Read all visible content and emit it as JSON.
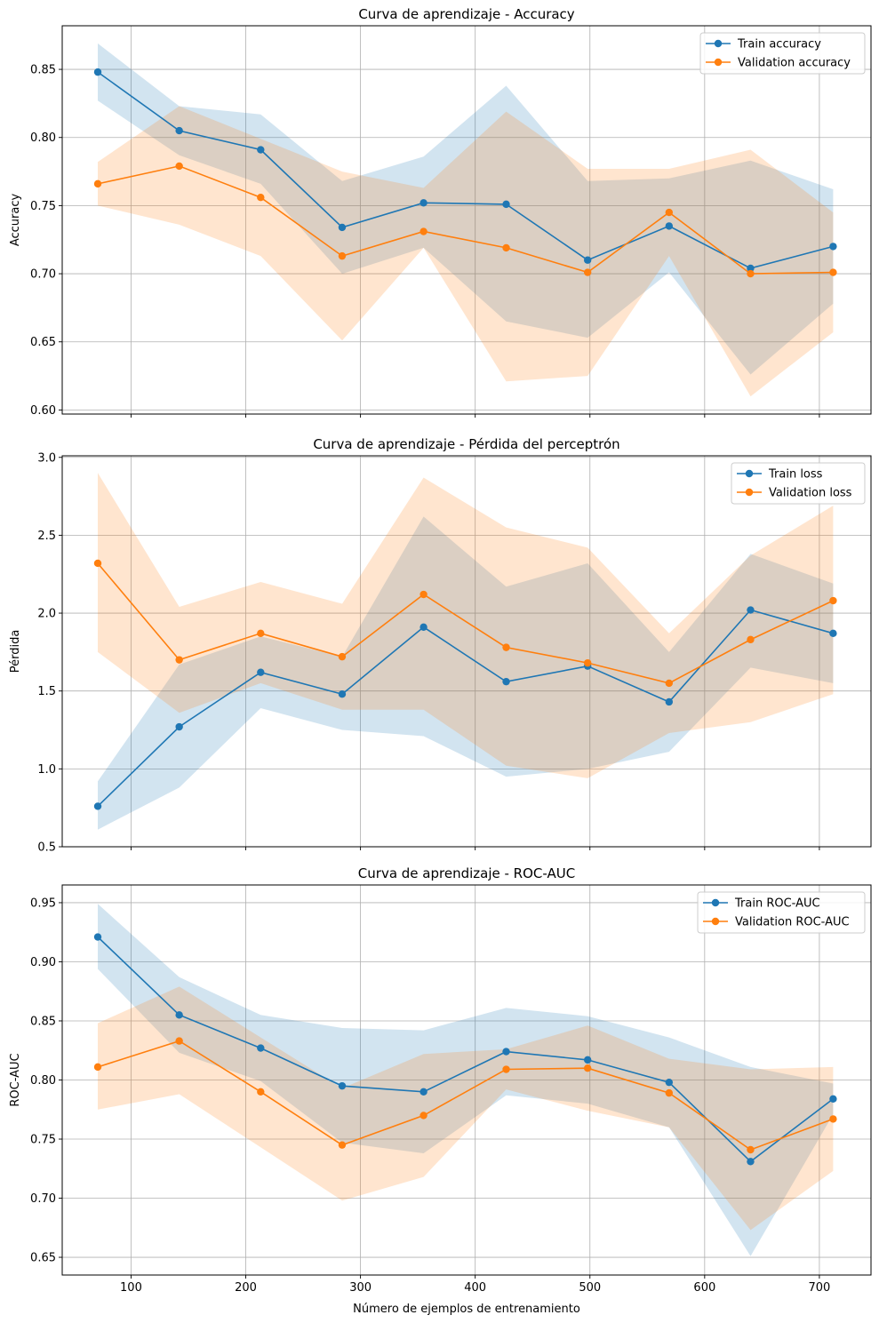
{
  "colors": {
    "train": "#1f77b4",
    "validation": "#ff7f0e",
    "grid": "#b0b0b0"
  },
  "xlabel": "Número de ejemplos de entrenamiento",
  "chart_data": [
    {
      "type": "line",
      "title": "Curva de aprendizaje - Accuracy",
      "xlabel": "",
      "ylabel": "Accuracy",
      "xlim": [
        40,
        745
      ],
      "ylim": [
        0.597,
        0.882
      ],
      "xticks": [
        100,
        200,
        300,
        400,
        500,
        600,
        700
      ],
      "show_xtick_labels": false,
      "yticks": [
        0.6,
        0.65,
        0.7,
        0.75,
        0.8,
        0.85
      ],
      "ytick_labels": [
        "0.60",
        "0.65",
        "0.70",
        "0.75",
        "0.80",
        "0.85"
      ],
      "grid": true,
      "legend": "top-right",
      "x": [
        71,
        142,
        213,
        284,
        355,
        427,
        498,
        569,
        640,
        712
      ],
      "series": [
        {
          "name": "Train accuracy",
          "color_key": "train",
          "values": [
            0.848,
            0.805,
            0.791,
            0.734,
            0.752,
            0.751,
            0.71,
            0.735,
            0.704,
            0.72
          ],
          "lower": [
            0.827,
            0.787,
            0.766,
            0.7,
            0.719,
            0.665,
            0.653,
            0.701,
            0.626,
            0.678
          ],
          "upper": [
            0.869,
            0.823,
            0.817,
            0.768,
            0.786,
            0.838,
            0.768,
            0.77,
            0.783,
            0.762
          ]
        },
        {
          "name": "Validation accuracy",
          "color_key": "validation",
          "values": [
            0.766,
            0.779,
            0.756,
            0.713,
            0.731,
            0.719,
            0.701,
            0.745,
            0.7,
            0.701
          ],
          "lower": [
            0.75,
            0.736,
            0.713,
            0.651,
            0.719,
            0.621,
            0.625,
            0.713,
            0.61,
            0.657
          ],
          "upper": [
            0.782,
            0.823,
            0.799,
            0.775,
            0.763,
            0.819,
            0.777,
            0.777,
            0.791,
            0.745
          ]
        }
      ]
    },
    {
      "type": "line",
      "title": "Curva de aprendizaje - Pérdida del perceptrón",
      "xlabel": "",
      "ylabel": "Pérdida",
      "xlim": [
        40,
        745
      ],
      "ylim": [
        0.5,
        3.01
      ],
      "xticks": [
        100,
        200,
        300,
        400,
        500,
        600,
        700
      ],
      "show_xtick_labels": false,
      "yticks": [
        0.5,
        1.0,
        1.5,
        2.0,
        2.5,
        3.0
      ],
      "ytick_labels": [
        "0.5",
        "1.0",
        "1.5",
        "2.0",
        "2.5",
        "3.0"
      ],
      "grid": true,
      "legend": "top-right",
      "x": [
        71,
        142,
        213,
        284,
        355,
        427,
        498,
        569,
        640,
        712
      ],
      "series": [
        {
          "name": "Train loss",
          "color_key": "train",
          "values": [
            0.76,
            1.27,
            1.62,
            1.48,
            1.91,
            1.56,
            1.66,
            1.43,
            2.02,
            1.87
          ],
          "lower": [
            0.61,
            0.88,
            1.39,
            1.25,
            1.21,
            0.95,
            1.0,
            1.11,
            1.65,
            1.55
          ],
          "upper": [
            0.92,
            1.67,
            1.85,
            1.72,
            2.62,
            2.17,
            2.32,
            1.75,
            2.38,
            2.19
          ]
        },
        {
          "name": "Validation loss",
          "color_key": "validation",
          "values": [
            2.32,
            1.7,
            1.87,
            1.72,
            2.12,
            1.78,
            1.68,
            1.55,
            1.83,
            2.08
          ],
          "lower": [
            1.75,
            1.36,
            1.55,
            1.38,
            1.38,
            1.02,
            0.94,
            1.23,
            1.3,
            1.48
          ],
          "upper": [
            2.9,
            2.04,
            2.2,
            2.06,
            2.87,
            2.55,
            2.42,
            1.87,
            2.37,
            2.69
          ]
        }
      ]
    },
    {
      "type": "line",
      "title": "Curva de aprendizaje - ROC-AUC",
      "xlabel": "Número de ejemplos de entrenamiento",
      "ylabel": "ROC-AUC",
      "xlim": [
        40,
        745
      ],
      "ylim": [
        0.635,
        0.965
      ],
      "xticks": [
        100,
        200,
        300,
        400,
        500,
        600,
        700
      ],
      "xtick_labels": [
        "100",
        "200",
        "300",
        "400",
        "500",
        "600",
        "700"
      ],
      "show_xtick_labels": true,
      "yticks": [
        0.65,
        0.7,
        0.75,
        0.8,
        0.85,
        0.9,
        0.95
      ],
      "ytick_labels": [
        "0.65",
        "0.70",
        "0.75",
        "0.80",
        "0.85",
        "0.90",
        "0.95"
      ],
      "grid": true,
      "legend": "top-right",
      "x": [
        71,
        142,
        213,
        284,
        355,
        427,
        498,
        569,
        640,
        712
      ],
      "series": [
        {
          "name": "Train ROC-AUC",
          "color_key": "train",
          "values": [
            0.921,
            0.855,
            0.827,
            0.795,
            0.79,
            0.824,
            0.817,
            0.798,
            0.731,
            0.784
          ],
          "lower": [
            0.894,
            0.823,
            0.799,
            0.747,
            0.738,
            0.787,
            0.78,
            0.76,
            0.651,
            0.771
          ],
          "upper": [
            0.949,
            0.887,
            0.855,
            0.844,
            0.842,
            0.861,
            0.854,
            0.836,
            0.811,
            0.797
          ]
        },
        {
          "name": "Validation ROC-AUC",
          "color_key": "validation",
          "values": [
            0.811,
            0.833,
            0.79,
            0.745,
            0.77,
            0.809,
            0.81,
            0.789,
            0.741,
            0.767
          ],
          "lower": [
            0.775,
            0.788,
            0.743,
            0.698,
            0.718,
            0.792,
            0.774,
            0.76,
            0.673,
            0.723
          ],
          "upper": [
            0.848,
            0.879,
            0.836,
            0.793,
            0.822,
            0.826,
            0.846,
            0.818,
            0.809,
            0.811
          ]
        }
      ]
    }
  ]
}
